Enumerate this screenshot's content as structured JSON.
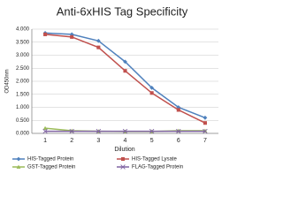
{
  "chart_data": {
    "type": "line",
    "title": "Anti-6xHIS Tag Specificity",
    "x_label": "Dilution",
    "y_label": "OD450nm",
    "categories": [
      "1",
      "2",
      "3",
      "4",
      "5",
      "6",
      "7"
    ],
    "ylim": [
      0,
      4
    ],
    "yticks": [
      {
        "value": 0,
        "label": "0.000"
      },
      {
        "value": 0.5,
        "label": "0.500"
      },
      {
        "value": 1,
        "label": "1.000"
      },
      {
        "value": 1.5,
        "label": "1.500"
      },
      {
        "value": 2,
        "label": "2.000"
      },
      {
        "value": 2.5,
        "label": "2.500"
      },
      {
        "value": 3,
        "label": "3.000"
      },
      {
        "value": 3.5,
        "label": "3.500"
      },
      {
        "value": 4,
        "label": "4.000"
      }
    ],
    "grid": true,
    "legend": "bottom",
    "series": [
      {
        "name": "HIS-Tagged Protein",
        "color": "#4f81bd",
        "marker": "diamond",
        "values": [
          3.85,
          3.8,
          3.55,
          2.75,
          1.75,
          1.0,
          0.6
        ]
      },
      {
        "name": "HIS-Tagged Lysate",
        "color": "#c0504d",
        "marker": "square",
        "values": [
          3.8,
          3.7,
          3.3,
          2.4,
          1.55,
          0.9,
          0.4
        ]
      },
      {
        "name": "GST-Tagged Protein",
        "color": "#9bbb59",
        "marker": "triangle",
        "values": [
          0.2,
          0.1,
          0.08,
          0.07,
          0.07,
          0.1,
          0.1
        ]
      },
      {
        "name": "FLAG-Tagged Protein",
        "color": "#8064a2",
        "marker": "x",
        "values": [
          0.08,
          0.08,
          0.08,
          0.08,
          0.08,
          0.08,
          0.08
        ]
      }
    ]
  }
}
